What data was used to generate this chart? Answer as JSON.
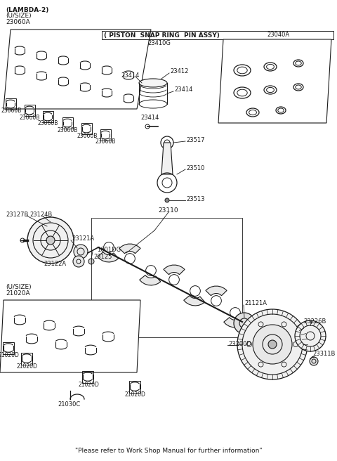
{
  "bg_color": "#ffffff",
  "lc": "#1a1a1a",
  "tc": "#1a1a1a",
  "footer": "\"Please refer to Work Shop Manual for further information\"",
  "labels": {
    "LAMBDA2": "(LAMBDA-2)",
    "USIZE_top": "(U/SIZE)",
    "part_23060A": "23060A",
    "PISTON_SNAP": "( PISTON  SNAP RING  PIN ASSY)",
    "part_23410G": "23410G",
    "part_23040A": "23040A",
    "part_23414a": "23414",
    "part_23412": "23412",
    "part_23414b": "23414",
    "part_23060B": "23060B",
    "part_23517": "23517",
    "part_23510": "23510",
    "part_23513": "23513",
    "part_23127B": "23127B",
    "part_23124B": "23124B",
    "part_23110": "23110",
    "part_23121A": "23121A",
    "part_1601DG": "1601DG",
    "part_23125": "23125",
    "part_23122A": "23122A",
    "USIZE_bot": "(U/SIZE)",
    "part_21020A": "21020A",
    "part_21020D": "21020D",
    "part_21030C": "21030C",
    "part_21121A": "21121A",
    "part_23226B": "23226B",
    "part_23200D": "23200D",
    "part_23311B": "23311B"
  }
}
